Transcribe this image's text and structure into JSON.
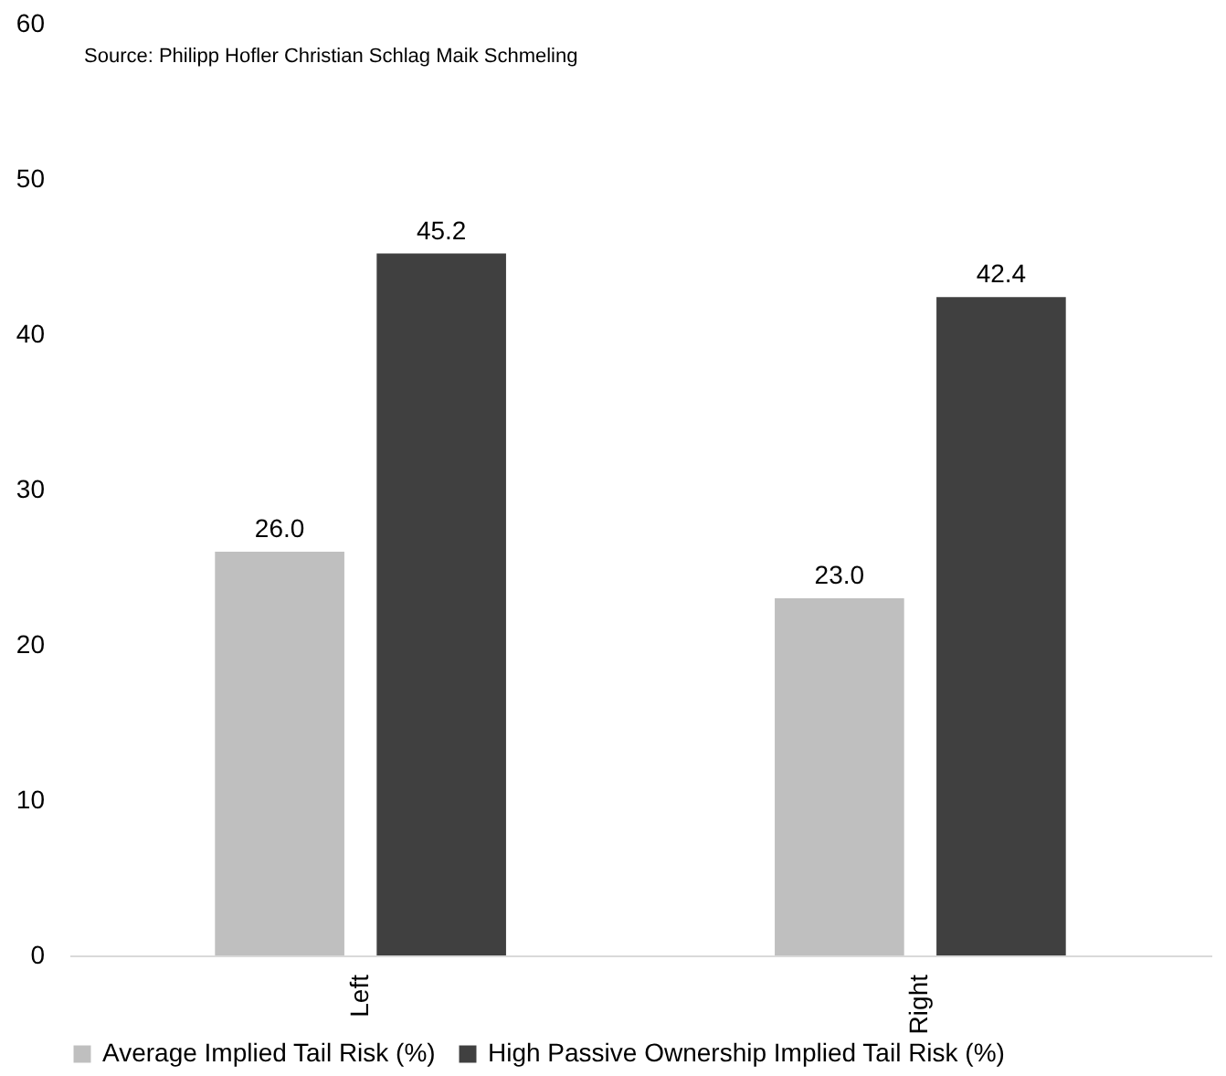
{
  "chart_data": {
    "type": "bar",
    "categories": [
      "Left",
      "Right"
    ],
    "series": [
      {
        "name": "Average Implied Tail Risk (%)",
        "color": "#bfbfbf",
        "values": [
          26.0,
          23.0
        ],
        "value_labels": [
          "26.0",
          "23.0"
        ]
      },
      {
        "name": "High Passive Ownership Implied Tail Risk (%)",
        "color": "#404040",
        "values": [
          45.2,
          42.4
        ],
        "value_labels": [
          "45.2",
          "42.4"
        ]
      }
    ],
    "ylim": [
      0,
      60
    ],
    "yticks": [
      0,
      10,
      20,
      30,
      40,
      50,
      60
    ],
    "grid": false,
    "legend": "bottom",
    "annotations": [
      "Source: Philipp Hofler Christian Schlag Maik Schmeling"
    ]
  }
}
